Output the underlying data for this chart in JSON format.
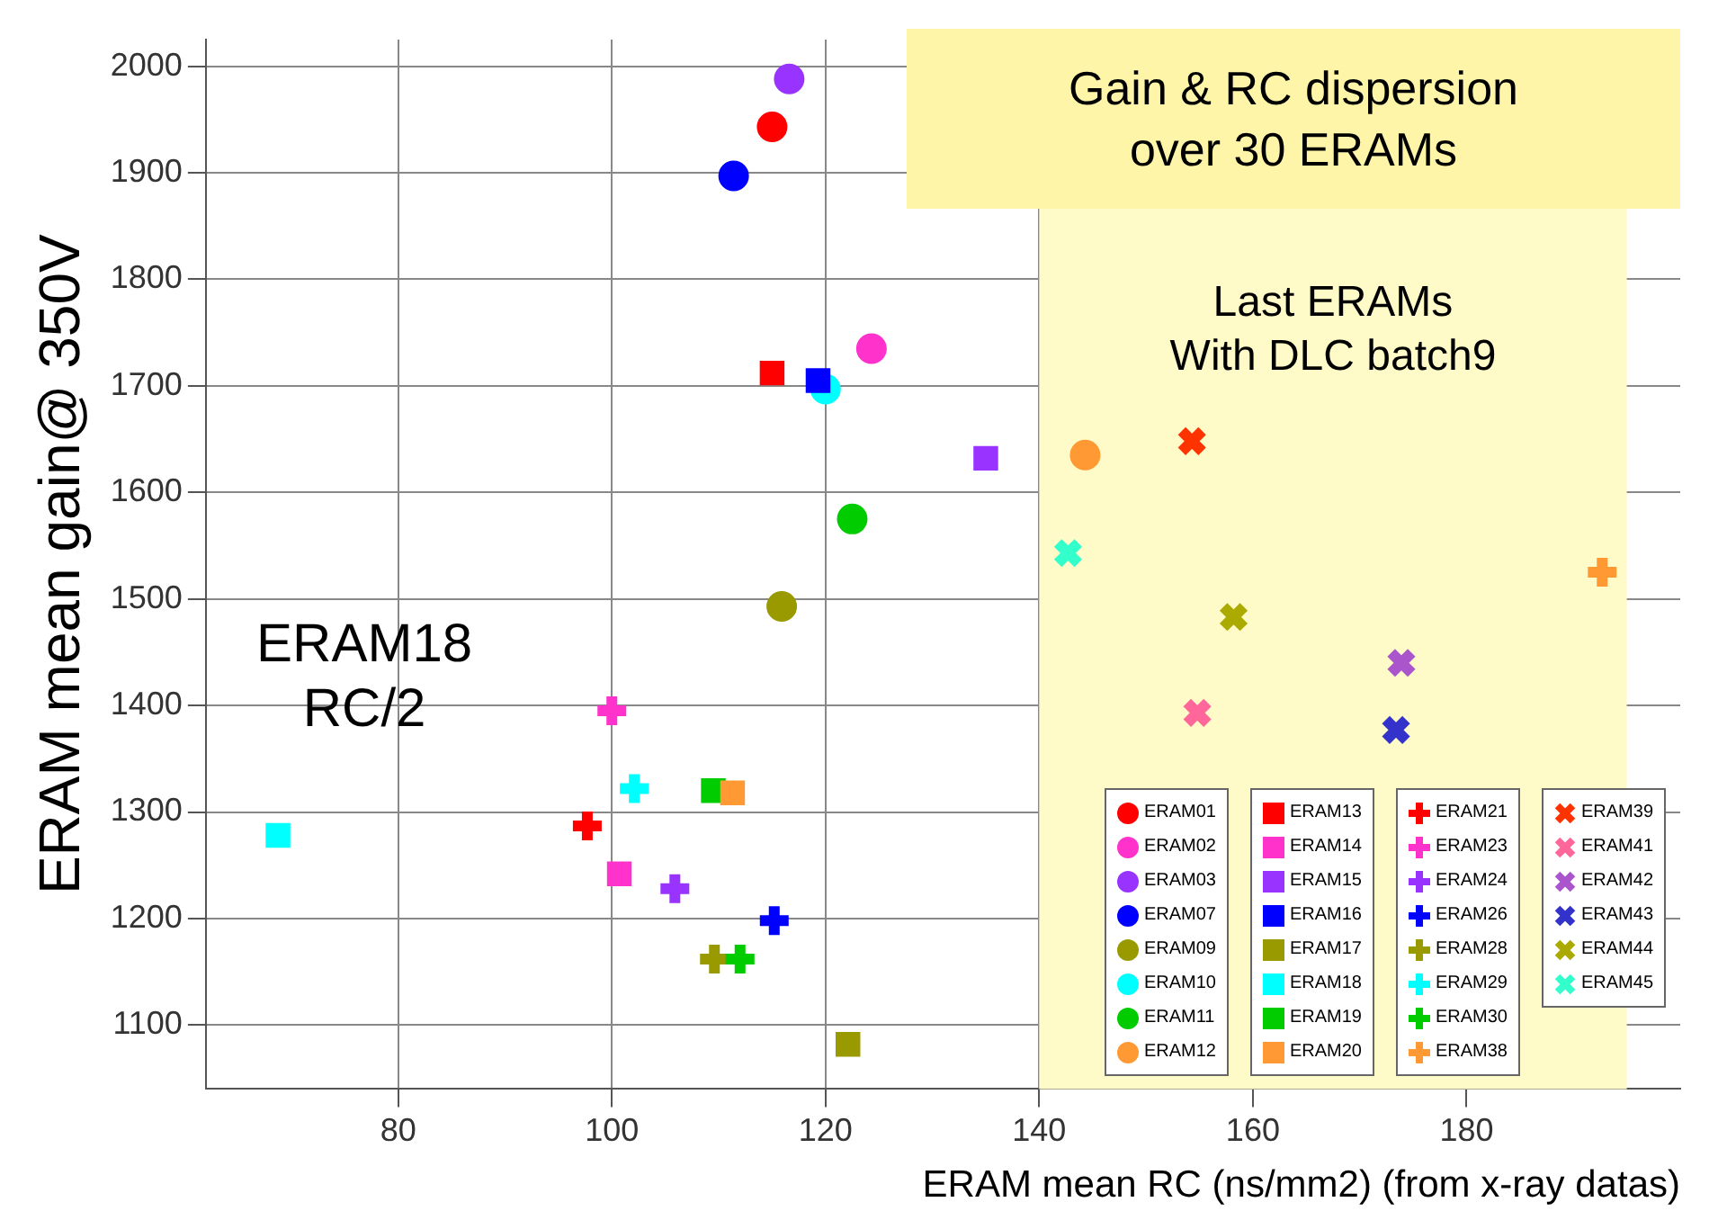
{
  "chart_data": {
    "type": "scatter",
    "title": "Gain & RC dispersion\nover 30 ERAMs",
    "xlabel": "ERAM mean RC (ns/mm2) (from x-ray datas)",
    "ylabel": "ERAM mean gain@ 350V",
    "xlim": [
      62,
      200
    ],
    "xticks": [
      80,
      100,
      120,
      140,
      160,
      180
    ],
    "ylim": [
      1040,
      2025
    ],
    "yticks": [
      1100,
      1200,
      1300,
      1400,
      1500,
      1600,
      1700,
      1800,
      1900,
      2000
    ],
    "grid": true,
    "legend": "bottom right",
    "bands": [
      {
        "axis": "x",
        "from": 140,
        "to": 195,
        "label": "Last ERAMs\nWith DLC batch9",
        "color": "#fffbc8"
      }
    ],
    "annotations": [
      {
        "text": "ERAM18\nRC/2",
        "x": 68.75,
        "y": 1278
      }
    ],
    "series": [
      {
        "name": "ERAM01",
        "color": "#ff0000",
        "marker": "circle",
        "x": [
          115.0
        ],
        "values": [
          1943
        ]
      },
      {
        "name": "ERAM02",
        "color": "#ff33cc",
        "marker": "circle",
        "x": [
          124.3
        ],
        "values": [
          1735
        ]
      },
      {
        "name": "ERAM03",
        "color": "#9933ff",
        "marker": "circle",
        "x": [
          116.6
        ],
        "values": [
          1988
        ]
      },
      {
        "name": "ERAM07",
        "color": "#0000ff",
        "marker": "circle",
        "x": [
          111.4
        ],
        "values": [
          1897
        ]
      },
      {
        "name": "ERAM09",
        "color": "#999900",
        "marker": "circle",
        "x": [
          115.9
        ],
        "values": [
          1493
        ]
      },
      {
        "name": "ERAM10",
        "color": "#00ffff",
        "marker": "circle",
        "x": [
          120.0
        ],
        "values": [
          1697
        ]
      },
      {
        "name": "ERAM11",
        "color": "#00cc00",
        "marker": "circle",
        "x": [
          122.5
        ],
        "values": [
          1575
        ]
      },
      {
        "name": "ERAM12",
        "color": "#ff9933",
        "marker": "circle",
        "x": [
          144.3
        ],
        "values": [
          1635
        ]
      },
      {
        "name": "ERAM13",
        "color": "#ff0000",
        "marker": "square",
        "x": [
          115.0
        ],
        "values": [
          1712
        ]
      },
      {
        "name": "ERAM14",
        "color": "#ff33cc",
        "marker": "square",
        "x": [
          100.7
        ],
        "values": [
          1242
        ]
      },
      {
        "name": "ERAM15",
        "color": "#9933ff",
        "marker": "square",
        "x": [
          135.0
        ],
        "values": [
          1632
        ]
      },
      {
        "name": "ERAM16",
        "color": "#0000ff",
        "marker": "square",
        "x": [
          119.3
        ],
        "values": [
          1705
        ]
      },
      {
        "name": "ERAM17",
        "color": "#999900",
        "marker": "square",
        "x": [
          122.1
        ],
        "values": [
          1082
        ]
      },
      {
        "name": "ERAM18",
        "color": "#00ffff",
        "marker": "square",
        "x": [
          68.75
        ],
        "values": [
          1278
        ]
      },
      {
        "name": "ERAM19",
        "color": "#00cc00",
        "marker": "square",
        "x": [
          109.5
        ],
        "values": [
          1320
        ]
      },
      {
        "name": "ERAM20",
        "color": "#ff9933",
        "marker": "square",
        "x": [
          111.3
        ],
        "values": [
          1318
        ]
      },
      {
        "name": "ERAM21",
        "color": "#ff0000",
        "marker": "plus",
        "x": [
          97.7
        ],
        "values": [
          1287
        ]
      },
      {
        "name": "ERAM23",
        "color": "#ff33cc",
        "marker": "plus",
        "x": [
          100.0
        ],
        "values": [
          1395
        ]
      },
      {
        "name": "ERAM24",
        "color": "#9933ff",
        "marker": "plus",
        "x": [
          105.9
        ],
        "values": [
          1228
        ]
      },
      {
        "name": "ERAM26",
        "color": "#0000ff",
        "marker": "plus",
        "x": [
          115.2
        ],
        "values": [
          1198
        ]
      },
      {
        "name": "ERAM28",
        "color": "#999900",
        "marker": "plus",
        "x": [
          109.6
        ],
        "values": [
          1162
        ]
      },
      {
        "name": "ERAM29",
        "color": "#00ffff",
        "marker": "plus",
        "x": [
          102.1
        ],
        "values": [
          1322
        ]
      },
      {
        "name": "ERAM30",
        "color": "#00cc00",
        "marker": "plus",
        "x": [
          112.0
        ],
        "values": [
          1162
        ]
      },
      {
        "name": "ERAM38",
        "color": "#ff9933",
        "marker": "plus",
        "x": [
          192.7
        ],
        "values": [
          1525
        ]
      },
      {
        "name": "ERAM39",
        "color": "#ff3300",
        "marker": "cross",
        "x": [
          154.3
        ],
        "values": [
          1648
        ]
      },
      {
        "name": "ERAM41",
        "color": "#ff6699",
        "marker": "cross",
        "x": [
          154.8
        ],
        "values": [
          1393
        ]
      },
      {
        "name": "ERAM42",
        "color": "#aa55cc",
        "marker": "cross",
        "x": [
          173.9
        ],
        "values": [
          1440
        ]
      },
      {
        "name": "ERAM43",
        "color": "#3333cc",
        "marker": "cross",
        "x": [
          173.4
        ],
        "values": [
          1377
        ]
      },
      {
        "name": "ERAM44",
        "color": "#aaaa00",
        "marker": "cross",
        "x": [
          158.2
        ],
        "values": [
          1483
        ]
      },
      {
        "name": "ERAM45",
        "color": "#33ffcc",
        "marker": "cross",
        "x": [
          142.7
        ],
        "values": [
          1543
        ]
      }
    ]
  }
}
